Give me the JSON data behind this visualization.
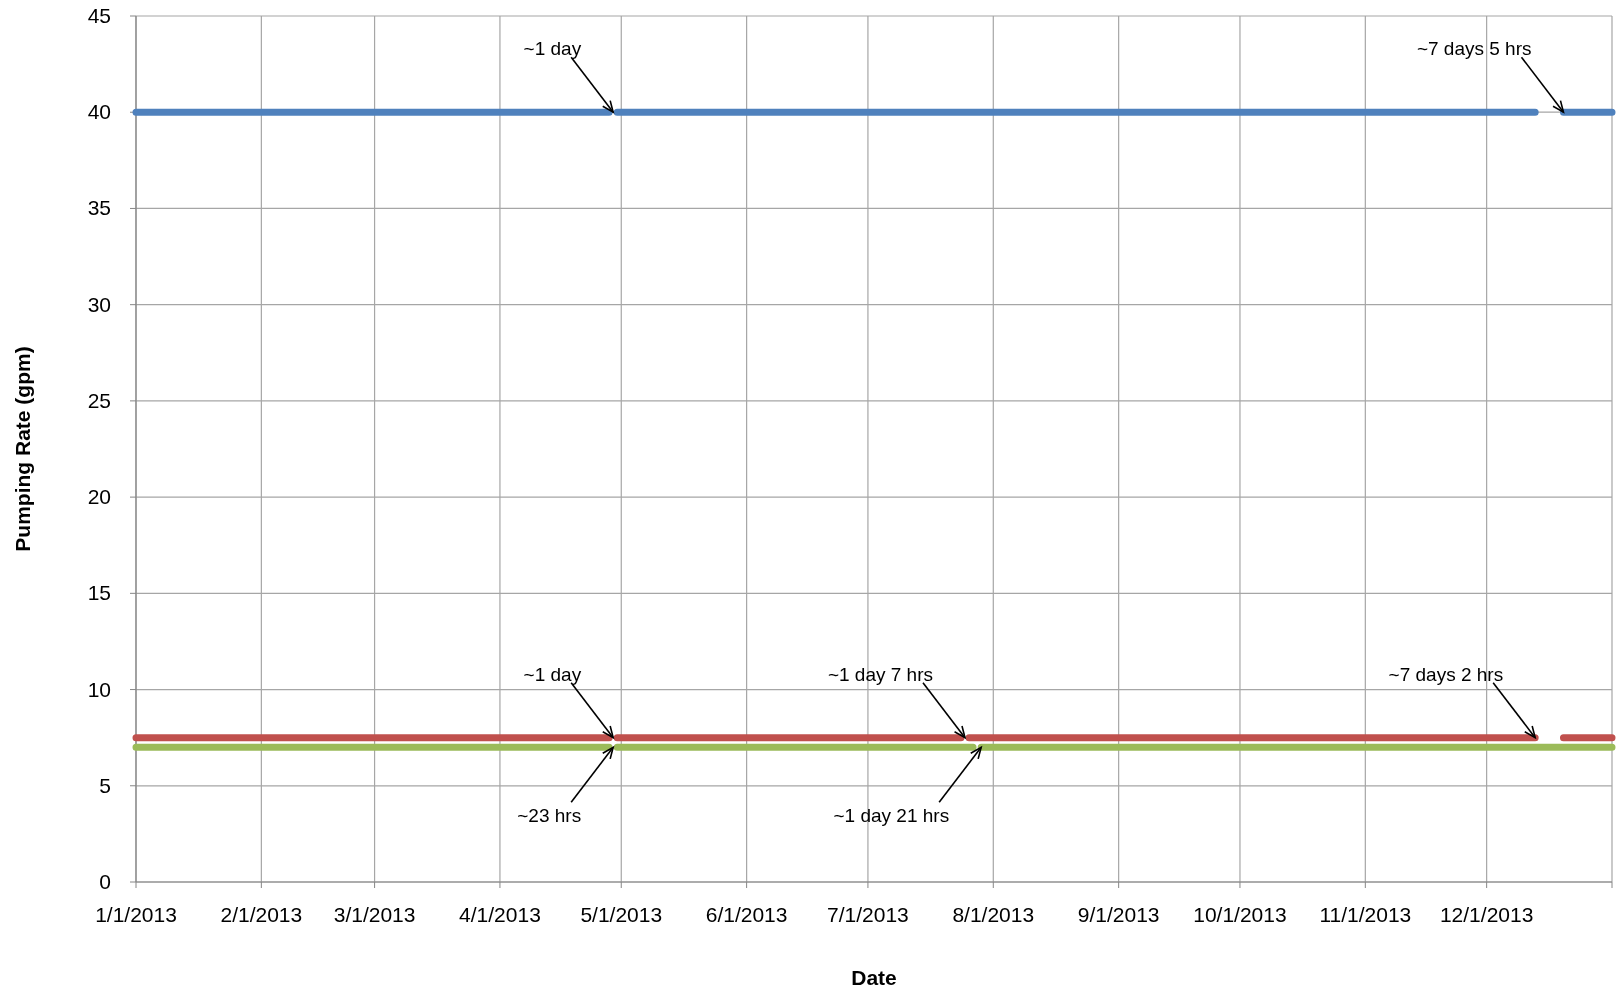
{
  "chart_data": {
    "type": "line",
    "xlabel": "Date",
    "ylabel": "Pumping Rate (gpm)",
    "xlim": [
      "2013-01-01",
      "2014-01-01"
    ],
    "xticks": [
      {
        "value": "2013-01-01",
        "label": "1/1/2013"
      },
      {
        "value": "2013-02-01",
        "label": "2/1/2013"
      },
      {
        "value": "2013-03-01",
        "label": "3/1/2013"
      },
      {
        "value": "2013-04-01",
        "label": "4/1/2013"
      },
      {
        "value": "2013-05-01",
        "label": "5/1/2013"
      },
      {
        "value": "2013-06-01",
        "label": "6/1/2013"
      },
      {
        "value": "2013-07-01",
        "label": "7/1/2013"
      },
      {
        "value": "2013-08-01",
        "label": "8/1/2013"
      },
      {
        "value": "2013-09-01",
        "label": "9/1/2013"
      },
      {
        "value": "2013-10-01",
        "label": "10/1/2013"
      },
      {
        "value": "2013-11-01",
        "label": "11/1/2013"
      },
      {
        "value": "2013-12-01",
        "label": "12/1/2013"
      },
      {
        "value": "2014-01-01",
        "label": null
      }
    ],
    "ylim": [
      0,
      45
    ],
    "yticks": [
      0,
      5,
      10,
      15,
      20,
      25,
      30,
      35,
      40,
      45
    ],
    "grid": true,
    "marker": "none",
    "line_style": "solid",
    "series": [
      {
        "color": "#4f81bd",
        "x": [
          "2013-01-01",
          "2013-04-28",
          "2013-04-29",
          "2013-04-30",
          "2013-12-13",
          "2013-12-16",
          "2013-12-20",
          "2014-01-01"
        ],
        "values": [
          40,
          40,
          null,
          40,
          40,
          null,
          40,
          40
        ]
      },
      {
        "color": "#c0504d",
        "x": [
          "2013-01-01",
          "2013-04-28",
          "2013-04-29",
          "2013-04-30",
          "2013-07-24",
          "2013-07-25",
          "2013-07-26",
          "2013-12-13",
          "2013-12-16",
          "2013-12-20",
          "2014-01-01"
        ],
        "values": [
          7.5,
          7.5,
          null,
          7.5,
          7.5,
          null,
          7.5,
          7.5,
          null,
          7.5,
          7.5
        ]
      },
      {
        "color": "#9bbb59",
        "x": [
          "2013-01-01",
          "2013-04-28",
          "2013-04-29",
          "2013-04-30",
          "2013-07-27",
          "2013-07-28",
          "2013-07-29",
          "2014-01-01"
        ],
        "values": [
          7,
          7,
          null,
          7,
          7,
          null,
          7,
          7
        ]
      }
    ],
    "annotations": [
      {
        "text": "~1 day",
        "x": "2013-04-29",
        "y": 40
      },
      {
        "text": "~7 days 5 hrs",
        "x": "2013-12-20",
        "y": 40
      },
      {
        "text": "~1 day",
        "x": "2013-04-29",
        "y": 7.5
      },
      {
        "text": "~1 day 7 hrs",
        "x": "2013-07-25",
        "y": 7.5
      },
      {
        "text": "~7 days 2 hrs",
        "x": "2013-12-13",
        "y": 7.5
      },
      {
        "text": "~23 hrs",
        "x": "2013-04-29",
        "y": 7
      },
      {
        "text": "~1 day 21 hrs",
        "x": "2013-07-29",
        "y": 7
      }
    ]
  }
}
